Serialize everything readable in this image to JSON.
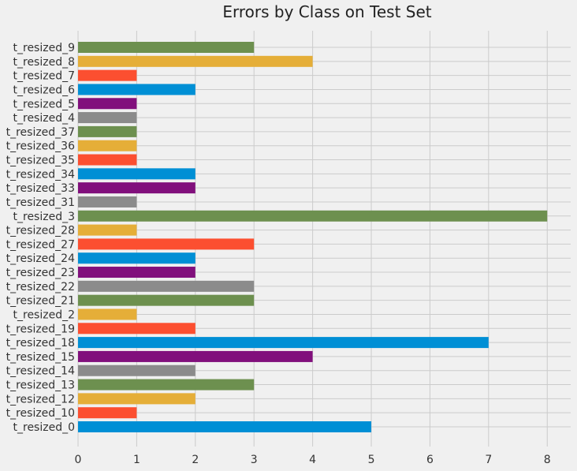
{
  "chart_data": {
    "type": "bar",
    "orientation": "horizontal",
    "title": "Errors by Class on Test Set",
    "xlabel": "",
    "ylabel": "",
    "xlim": [
      0,
      8.4
    ],
    "x_ticks": [
      0,
      1,
      2,
      3,
      4,
      5,
      6,
      7,
      8
    ],
    "grid": true,
    "categories": [
      "t_resized_0",
      "t_resized_10",
      "t_resized_12",
      "t_resized_13",
      "t_resized_14",
      "t_resized_15",
      "t_resized_18",
      "t_resized_19",
      "t_resized_2",
      "t_resized_21",
      "t_resized_22",
      "t_resized_23",
      "t_resized_24",
      "t_resized_27",
      "t_resized_28",
      "t_resized_3",
      "t_resized_31",
      "t_resized_33",
      "t_resized_34",
      "t_resized_35",
      "t_resized_36",
      "t_resized_37",
      "t_resized_4",
      "t_resized_5",
      "t_resized_6",
      "t_resized_7",
      "t_resized_8",
      "t_resized_9"
    ],
    "values": [
      5,
      1,
      2,
      3,
      2,
      4,
      7,
      2,
      1,
      3,
      3,
      2,
      2,
      3,
      1,
      8,
      1,
      2,
      2,
      1,
      1,
      1,
      1,
      1,
      2,
      1,
      4,
      3
    ],
    "colors": [
      "#008fd5",
      "#fc4f30",
      "#e5ae38",
      "#6d904f",
      "#8b8b8b",
      "#810f7c"
    ]
  }
}
